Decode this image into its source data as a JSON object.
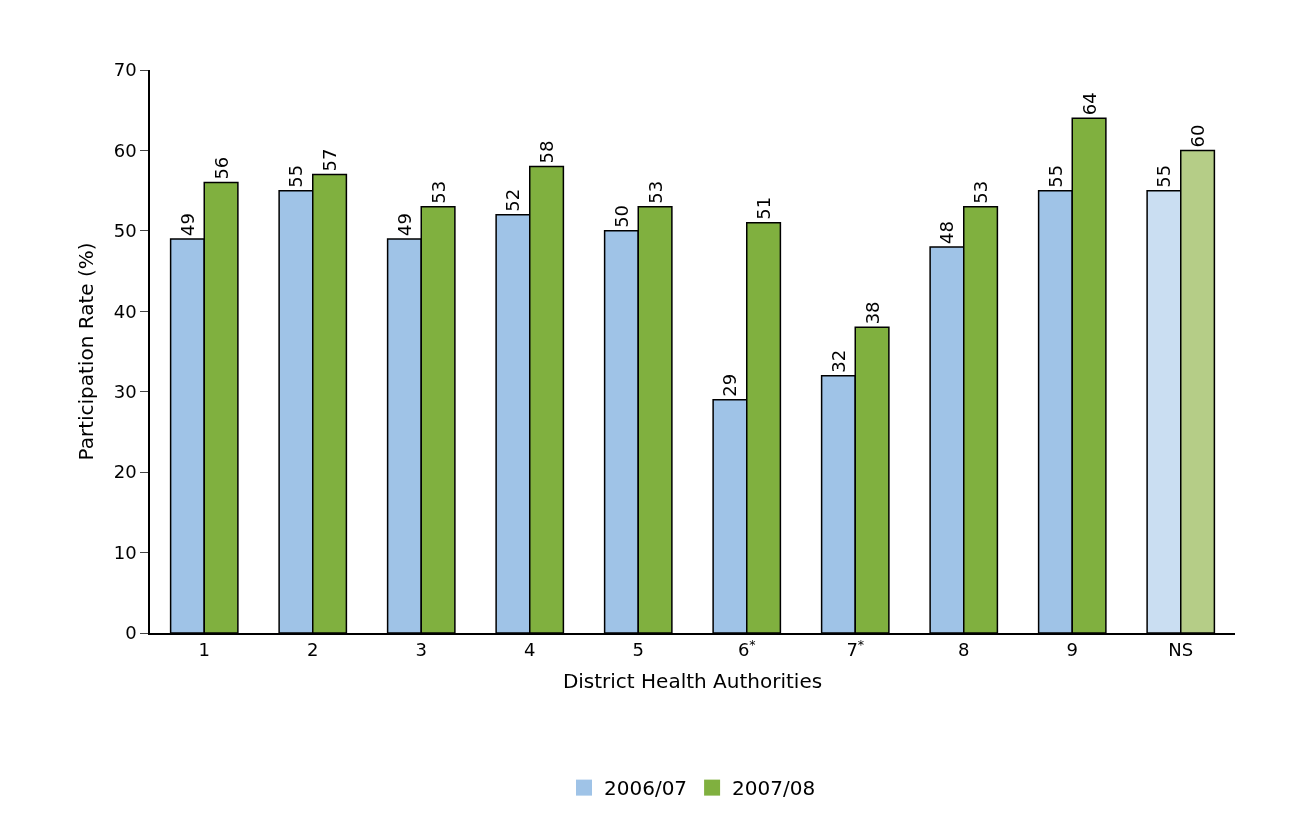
{
  "chart_data": {
    "type": "bar",
    "xlabel": "District Health Authorities",
    "ylabel": "Participation Rate (%)",
    "categories": [
      "1",
      "2",
      "3",
      "4",
      "5",
      "6$^{*}$",
      "7$^{*}$",
      "8",
      "9",
      "NS"
    ],
    "series": [
      {
        "name": "2006/07",
        "color": "#9fc3e7",
        "colors": [
          "#9fc3e7",
          "#9fc3e7",
          "#9fc3e7",
          "#9fc3e7",
          "#9fc3e7",
          "#9fc3e7",
          "#9fc3e7",
          "#9fc3e7",
          "#9fc3e7",
          "#cadef2"
        ],
        "values": [
          49,
          55,
          49,
          52,
          50,
          29,
          32,
          48,
          55,
          55
        ]
      },
      {
        "name": "2007/08",
        "color": "#80b03f",
        "colors": [
          "#80b03f",
          "#80b03f",
          "#80b03f",
          "#80b03f",
          "#80b03f",
          "#80b03f",
          "#80b03f",
          "#80b03f",
          "#80b03f",
          "#b5cd87"
        ],
        "values": [
          56,
          57,
          53,
          58,
          53,
          51,
          38,
          53,
          64,
          60
        ]
      }
    ],
    "ylim": [
      0,
      70
    ],
    "yticks": [
      0,
      10,
      20,
      30,
      40,
      50,
      60,
      70
    ],
    "data_labels": true,
    "legend": "bottom"
  }
}
